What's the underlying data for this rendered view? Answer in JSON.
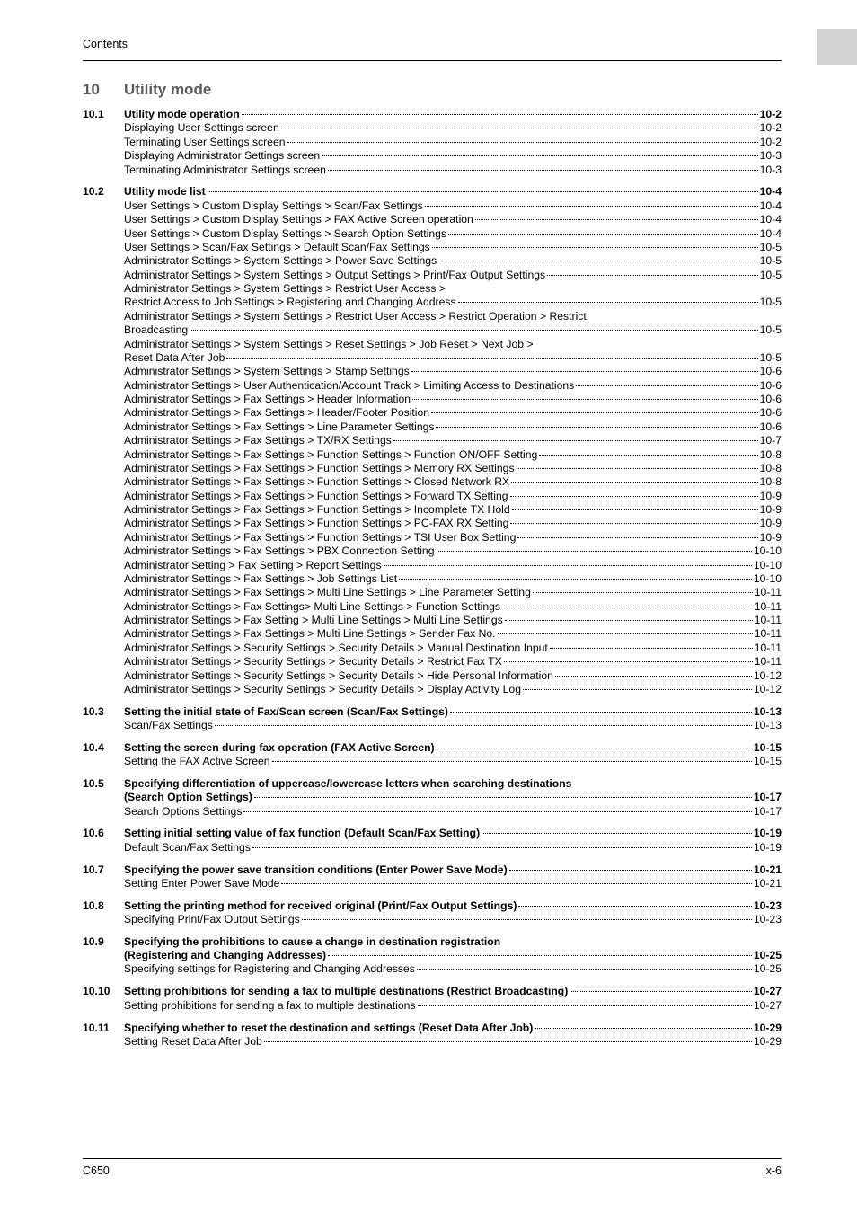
{
  "header": "Contents",
  "sideTab": true,
  "chapter": {
    "num": "10",
    "title": "Utility mode"
  },
  "footer": {
    "left": "C650",
    "right": "x-6"
  },
  "sections": [
    {
      "num": "10.1",
      "title": "Utility mode operation",
      "page": "10-2",
      "subs": [
        {
          "t": "Displaying User Settings screen",
          "p": "10-2"
        },
        {
          "t": "Terminating User Settings screen",
          "p": "10-2"
        },
        {
          "t": "Displaying Administrator Settings screen",
          "p": "10-3"
        },
        {
          "t": "Terminating Administrator Settings screen",
          "p": "10-3"
        }
      ]
    },
    {
      "num": "10.2",
      "title": "Utility mode list",
      "page": "10-4",
      "subs": [
        {
          "t": "User Settings > Custom Display Settings > Scan/Fax Settings",
          "p": "10-4"
        },
        {
          "t": "User Settings > Custom Display Settings > FAX Active Screen operation",
          "p": "10-4"
        },
        {
          "t": "User Settings > Custom Display Settings > Search Option Settings",
          "p": "10-4"
        },
        {
          "t": "User Settings > Scan/Fax Settings > Default Scan/Fax Settings",
          "p": "10-5"
        },
        {
          "t": "Administrator Settings > System Settings > Power Save Settings",
          "p": "10-5"
        },
        {
          "t": "Administrator Settings > System Settings > Output Settings > Print/Fax Output Settings",
          "p": "10-5"
        },
        {
          "t": "Administrator Settings > System Settings > Restrict User Access >",
          "cont": "Restrict Access to Job Settings > Registering and Changing Address",
          "p": "10-5"
        },
        {
          "t": "Administrator Settings > System Settings > Restrict User Access > Restrict Operation > Restrict",
          "cont": "Broadcasting",
          "p": "10-5"
        },
        {
          "t": "Administrator Settings > System Settings > Reset Settings > Job Reset > Next Job >",
          "cont": "Reset Data After Job",
          "p": "10-5"
        },
        {
          "t": "Administrator Settings > System Settings > Stamp Settings",
          "p": "10-6"
        },
        {
          "t": "Administrator Settings > User Authentication/Account Track > Limiting Access to Destinations",
          "p": "10-6"
        },
        {
          "t": "Administrator Settings > Fax Settings > Header Information",
          "p": "10-6"
        },
        {
          "t": "Administrator Settings > Fax Settings > Header/Footer Position",
          "p": "10-6"
        },
        {
          "t": "Administrator Settings > Fax Settings > Line Parameter Settings",
          "p": "10-6"
        },
        {
          "t": "Administrator Settings > Fax Settings > TX/RX Settings",
          "p": "10-7"
        },
        {
          "t": "Administrator Settings > Fax Settings > Function Settings > Function ON/OFF Setting",
          "p": "10-8"
        },
        {
          "t": "Administrator Settings > Fax Settings > Function Settings > Memory RX Settings",
          "p": "10-8"
        },
        {
          "t": "Administrator Settings > Fax Settings > Function Settings > Closed Network RX",
          "p": "10-8"
        },
        {
          "t": "Administrator Settings > Fax Settings > Function Settings > Forward TX Setting",
          "p": "10-9"
        },
        {
          "t": "Administrator Settings > Fax Settings > Function Settings > Incomplete TX Hold",
          "p": "10-9"
        },
        {
          "t": "Administrator Settings > Fax Settings > Function Settings > PC-FAX RX Setting",
          "p": "10-9"
        },
        {
          "t": "Administrator Settings > Fax Settings > Function Settings > TSI User Box Setting",
          "p": "10-9"
        },
        {
          "t": "Administrator Settings > Fax Settings > PBX Connection Setting",
          "p": "10-10"
        },
        {
          "t": "Administrator Setting > Fax Setting > Report Settings",
          "p": "10-10"
        },
        {
          "t": "Administrator Settings > Fax Settings > Job Settings List",
          "p": "10-10"
        },
        {
          "t": "Administrator Settings > Fax Settings > Multi Line Settings > Line Parameter Setting",
          "p": "10-11"
        },
        {
          "t": "Administrator Settings > Fax Settings> Multi Line Settings > Function Settings",
          "p": "10-11"
        },
        {
          "t": "Administrator Settings > Fax Setting > Multi Line Settings > Multi Line Settings",
          "p": "10-11"
        },
        {
          "t": "Administrator Settings > Fax Settings > Multi Line Settings > Sender Fax No.",
          "p": "10-11"
        },
        {
          "t": "Administrator Settings > Security Settings > Security Details > Manual Destination Input",
          "p": "10-11"
        },
        {
          "t": "Administrator Settings > Security Settings > Security Details > Restrict Fax TX",
          "p": "10-11"
        },
        {
          "t": "Administrator Settings > Security Settings > Security Details > Hide Personal Information",
          "p": "10-12"
        },
        {
          "t": "Administrator Settings > Security Settings > Security Details > Display Activity Log",
          "p": "10-12"
        }
      ]
    },
    {
      "num": "10.3",
      "title": "Setting the initial state of Fax/Scan screen (Scan/Fax Settings)",
      "page": "10-13",
      "subs": [
        {
          "t": "Scan/Fax Settings",
          "p": "10-13"
        }
      ]
    },
    {
      "num": "10.4",
      "title": "Setting the screen during fax operation (FAX Active Screen)",
      "page": "10-15",
      "subs": [
        {
          "t": "Setting the FAX Active Screen",
          "p": "10-15"
        }
      ]
    },
    {
      "num": "10.5",
      "titleCont": {
        "l1": "Specifying differentiation of uppercase/lowercase letters when searching destinations",
        "l2": "(Search Option Settings)"
      },
      "page": "10-17",
      "subs": [
        {
          "t": "Search Options Settings",
          "p": "10-17"
        }
      ]
    },
    {
      "num": "10.6",
      "title": "Setting initial setting value of fax function (Default Scan/Fax Setting)",
      "page": "10-19",
      "subs": [
        {
          "t": "Default Scan/Fax Settings",
          "p": "10-19"
        }
      ]
    },
    {
      "num": "10.7",
      "title": "Specifying the power save transition conditions (Enter Power Save Mode)",
      "page": "10-21",
      "subs": [
        {
          "t": "Setting Enter Power Save Mode",
          "p": "10-21"
        }
      ]
    },
    {
      "num": "10.8",
      "title": "Setting the printing method for received original (Print/Fax Output Settings)",
      "page": "10-23",
      "subs": [
        {
          "t": "Specifying Print/Fax Output Settings",
          "p": "10-23"
        }
      ]
    },
    {
      "num": "10.9",
      "titleCont": {
        "l1": "Specifying the prohibitions to cause a change in destination registration",
        "l2": "(Registering and Changing Addresses)"
      },
      "page": "10-25",
      "subs": [
        {
          "t": "Specifying settings for Registering and Changing Addresses",
          "p": "10-25"
        }
      ]
    },
    {
      "num": "10.10",
      "title": "Setting prohibitions for sending a fax to multiple destinations (Restrict Broadcasting)",
      "page": "10-27",
      "subs": [
        {
          "t": "Setting prohibitions for sending a fax to multiple destinations",
          "p": "10-27"
        }
      ]
    },
    {
      "num": "10.11",
      "title": "Specifying whether to reset the destination and settings (Reset Data After Job)",
      "page": "10-29",
      "subs": [
        {
          "t": "Setting Reset Data After Job",
          "p": "10-29"
        }
      ]
    }
  ]
}
